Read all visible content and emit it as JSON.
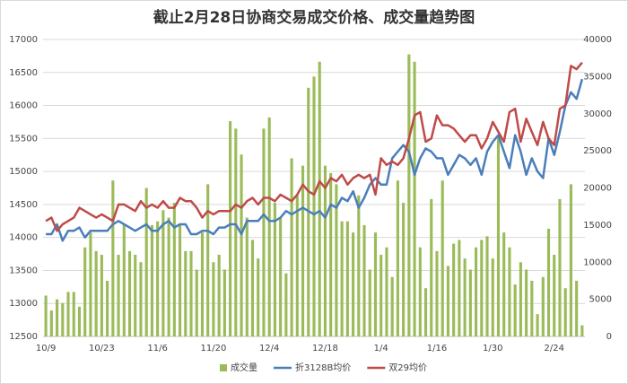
{
  "chart_data": {
    "type": "combo",
    "title": "截止2月28日协商交易成交价格、成交量趋势图",
    "categories": [
      "10/9",
      null,
      null,
      null,
      null,
      null,
      null,
      null,
      null,
      null,
      "10/23",
      null,
      null,
      null,
      null,
      null,
      null,
      null,
      null,
      null,
      "11/6",
      null,
      null,
      null,
      null,
      null,
      null,
      null,
      null,
      null,
      "11/20",
      null,
      null,
      null,
      null,
      null,
      null,
      null,
      null,
      null,
      "12/4",
      null,
      null,
      null,
      null,
      null,
      null,
      null,
      null,
      null,
      "12/18",
      null,
      null,
      null,
      null,
      null,
      null,
      null,
      null,
      null,
      "1/4",
      null,
      null,
      null,
      null,
      null,
      null,
      null,
      null,
      null,
      "1/16",
      null,
      null,
      null,
      null,
      null,
      null,
      null,
      null,
      null,
      "1/30",
      null,
      null,
      null,
      null,
      null,
      null,
      null,
      null,
      null,
      null,
      "2/24",
      null,
      null,
      null,
      null,
      null
    ],
    "series": [
      {
        "name": "成交量",
        "type": "bar",
        "axis": "y2",
        "color": "#9bbb59",
        "values": [
          5500,
          3500,
          5000,
          4500,
          6000,
          6000,
          4000,
          12000,
          14000,
          11500,
          11000,
          7500,
          21000,
          11000,
          15000,
          11500,
          11000,
          10000,
          20000,
          15000,
          15500,
          17000,
          16000,
          18000,
          15000,
          11500,
          11500,
          9000,
          14000,
          20500,
          10000,
          11000,
          9000,
          29000,
          28000,
          24500,
          16000,
          13000,
          10500,
          28000,
          29500,
          18000,
          16000,
          8500,
          24000,
          19000,
          23000,
          33500,
          35000,
          37000,
          23000,
          22000,
          20500,
          15500,
          15500,
          14000,
          19000,
          15000,
          9000,
          14000,
          11000,
          12000,
          8000,
          21000,
          18000,
          38000,
          37000,
          12000,
          6500,
          18500,
          11500,
          21000,
          9500,
          12500,
          13000,
          10500,
          9000,
          12000,
          13000,
          13500,
          10500,
          27000,
          14000,
          12000,
          7000,
          10000,
          9000,
          7500,
          3000,
          8000,
          14500,
          11000,
          18500,
          6500,
          20500,
          7500,
          1500
        ]
      },
      {
        "name": "折3128B均价",
        "type": "line",
        "color": "#4a7ebb",
        "values": [
          14050,
          14050,
          14200,
          13950,
          14100,
          14100,
          14150,
          14000,
          14100,
          14100,
          14100,
          14100,
          14200,
          14250,
          14200,
          14150,
          14100,
          14150,
          14200,
          14100,
          14100,
          14200,
          14250,
          14150,
          14200,
          14200,
          14050,
          14050,
          14100,
          14100,
          14050,
          14150,
          14150,
          14200,
          14200,
          14050,
          14250,
          14250,
          14250,
          14350,
          14250,
          14250,
          14300,
          14400,
          14350,
          14400,
          14450,
          14400,
          14350,
          14400,
          14300,
          14500,
          14450,
          14600,
          14550,
          14700,
          14450,
          14600,
          14800,
          14900,
          14800,
          14800,
          15200,
          15300,
          15400,
          15300,
          14950,
          15200,
          15350,
          15300,
          15200,
          15200,
          14950,
          15100,
          15250,
          15200,
          15100,
          15200,
          14950,
          15300,
          15450,
          15550,
          15300,
          15050,
          15550,
          15300,
          14950,
          15200,
          15000,
          14900,
          15500,
          15250,
          15600,
          16000,
          16200,
          16100,
          16400
        ]
      },
      {
        "name": "双29均价",
        "type": "line",
        "color": "#be4b48",
        "values": [
          14250,
          14300,
          14100,
          14200,
          14250,
          14300,
          14450,
          14400,
          14350,
          14300,
          14350,
          14300,
          14250,
          14500,
          14500,
          14450,
          14400,
          14550,
          14450,
          14500,
          14450,
          14550,
          14450,
          14450,
          14600,
          14550,
          14550,
          14450,
          14300,
          14400,
          14350,
          14400,
          14400,
          14400,
          14500,
          14450,
          14550,
          14600,
          14500,
          14600,
          14600,
          14550,
          14650,
          14600,
          14550,
          14650,
          14800,
          14700,
          14650,
          14850,
          14750,
          14900,
          14850,
          14950,
          14800,
          14900,
          14950,
          14900,
          14950,
          14650,
          15200,
          15100,
          15150,
          15100,
          15200,
          15500,
          15850,
          15900,
          15450,
          15500,
          15850,
          15700,
          15700,
          15650,
          15550,
          15450,
          15550,
          15550,
          15350,
          15500,
          15750,
          15600,
          15450,
          15900,
          15950,
          15450,
          15800,
          15600,
          15400,
          15750,
          15500,
          15400,
          15950,
          16000,
          16600,
          16550,
          16650
        ]
      }
    ],
    "ylim": [
      12500,
      17000
    ],
    "yticks": [
      12500,
      13000,
      13500,
      14000,
      14500,
      15000,
      15500,
      16000,
      16500,
      17000
    ],
    "y2lim": [
      0,
      40000
    ],
    "y2ticks": [
      0,
      5000,
      10000,
      15000,
      20000,
      25000,
      30000,
      35000,
      40000
    ],
    "grid": true,
    "legend": "bottom"
  }
}
